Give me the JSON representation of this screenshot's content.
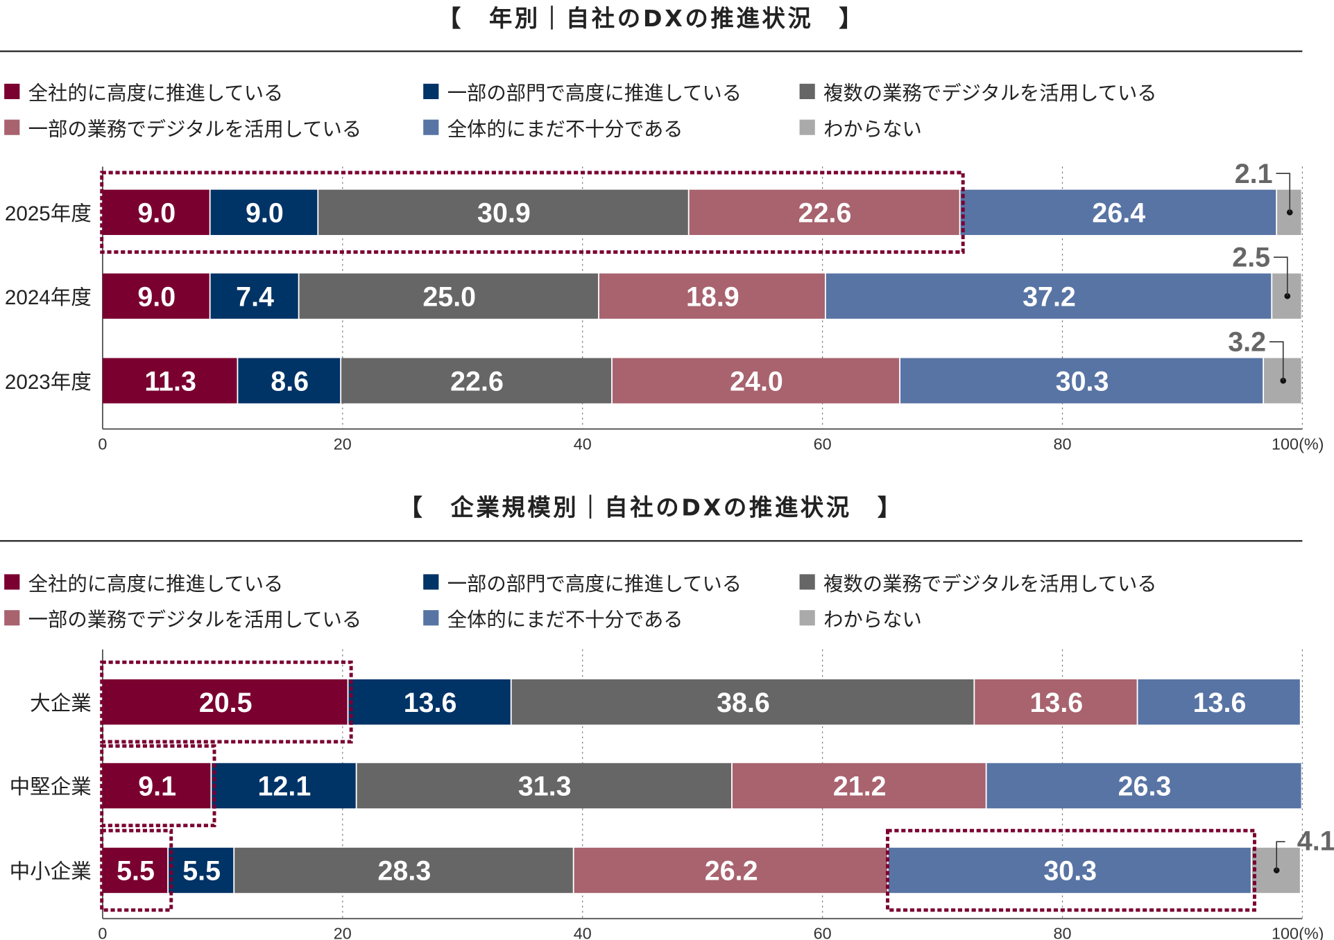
{
  "colors": [
    "#7a0030",
    "#003366",
    "#666666",
    "#a8636e",
    "#5874a4",
    "#aaaaaa"
  ],
  "legend": [
    "全社的に高度に推進している",
    "一部の部門で高度に推進している",
    "複数の業務でデジタルを活用している",
    "一部の業務でデジタルを活用している",
    "全体的にまだ不十分である",
    "わからない"
  ],
  "chart_data": [
    {
      "type": "bar",
      "orientation": "horizontal-stacked-100",
      "title": "【　年別｜自社のDXの推進状況　】",
      "categories": [
        "2025年度",
        "2024年度",
        "2023年度"
      ],
      "series": [
        {
          "name": "全社的に高度に推進している",
          "values": [
            9.0,
            9.0,
            11.3
          ]
        },
        {
          "name": "一部の部門で高度に推進している",
          "values": [
            9.0,
            7.4,
            8.6
          ]
        },
        {
          "name": "複数の業務でデジタルを活用している",
          "values": [
            30.9,
            25.0,
            22.6
          ]
        },
        {
          "name": "一部の業務でデジタルを活用している",
          "values": [
            22.6,
            18.9,
            24.0
          ]
        },
        {
          "name": "全体的にまだ不十分である",
          "values": [
            26.4,
            37.2,
            30.3
          ]
        },
        {
          "name": "わからない",
          "values": [
            2.1,
            2.5,
            3.2
          ]
        }
      ],
      "xlim": [
        0,
        100
      ],
      "xticks": [
        "0",
        "20",
        "40",
        "60",
        "80",
        "100(%)"
      ],
      "grid": "dotted vertical",
      "highlights": [
        {
          "category": "2025年度",
          "series": [
            0,
            1,
            2,
            3
          ]
        }
      ]
    },
    {
      "type": "bar",
      "orientation": "horizontal-stacked-100",
      "title": "【　企業規模別｜自社のDXの推進状況　】",
      "categories": [
        "大企業",
        "中堅企業",
        "中小企業"
      ],
      "series": [
        {
          "name": "全社的に高度に推進している",
          "values": [
            20.5,
            9.1,
            5.5
          ]
        },
        {
          "name": "一部の部門で高度に推進している",
          "values": [
            13.6,
            12.1,
            5.5
          ]
        },
        {
          "name": "複数の業務でデジタルを活用している",
          "values": [
            38.6,
            31.3,
            28.3
          ]
        },
        {
          "name": "一部の業務でデジタルを活用している",
          "values": [
            13.6,
            21.2,
            26.2
          ]
        },
        {
          "name": "全体的にまだ不十分である",
          "values": [
            13.6,
            26.3,
            30.3
          ]
        },
        {
          "name": "わからない",
          "values": [
            null,
            null,
            4.1
          ]
        }
      ],
      "xlim": [
        0,
        100
      ],
      "xticks": [
        "0",
        "20",
        "40",
        "60",
        "80",
        "100(%)"
      ],
      "grid": "dotted vertical",
      "highlights": [
        {
          "category": "大企業",
          "series": [
            0
          ]
        },
        {
          "category": "中堅企業",
          "series": [
            0
          ]
        },
        {
          "category": "中小企業",
          "series": [
            0
          ]
        },
        {
          "category": "中小企業",
          "series": [
            4
          ]
        }
      ]
    }
  ]
}
